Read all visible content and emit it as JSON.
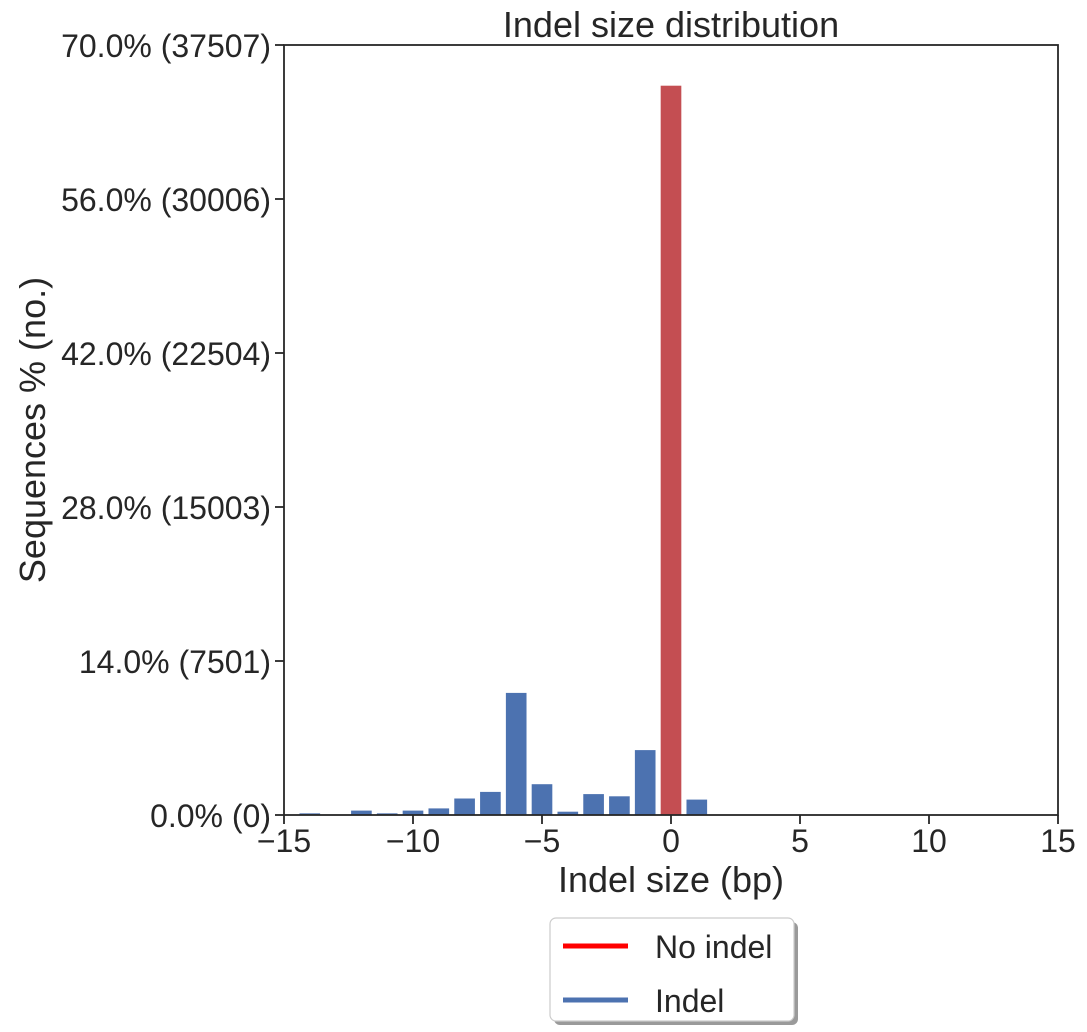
{
  "chart_data": {
    "type": "bar",
    "title": "Indel size distribution",
    "xlabel": "Indel size (bp)",
    "ylabel": "Sequences % (no.)",
    "xlim": [
      -15,
      15
    ],
    "ylim": [
      0,
      70
    ],
    "x_ticks": [
      {
        "value": -15,
        "label": "−15"
      },
      {
        "value": -10,
        "label": "−10"
      },
      {
        "value": -5,
        "label": "−5"
      },
      {
        "value": 0,
        "label": "0"
      },
      {
        "value": 5,
        "label": "5"
      },
      {
        "value": 10,
        "label": "10"
      },
      {
        "value": 15,
        "label": "15"
      }
    ],
    "y_ticks": [
      {
        "value": 0,
        "label": "0.0% (0)"
      },
      {
        "value": 14,
        "label": "14.0% (7501)"
      },
      {
        "value": 28,
        "label": "28.0% (15003)"
      },
      {
        "value": 42,
        "label": "42.0% (22504)"
      },
      {
        "value": 56,
        "label": "56.0% (30006)"
      },
      {
        "value": 70,
        "label": "70.0% (37507)"
      }
    ],
    "grid": false,
    "legend_position": "bottom-center",
    "series": [
      {
        "name": "Indel",
        "color": "#4c72b0",
        "points": [
          {
            "x": -14,
            "y": 0.15
          },
          {
            "x": -12,
            "y": 0.4
          },
          {
            "x": -11,
            "y": 0.15
          },
          {
            "x": -10,
            "y": 0.4
          },
          {
            "x": -9,
            "y": 0.6
          },
          {
            "x": -8,
            "y": 1.5
          },
          {
            "x": -7,
            "y": 2.1
          },
          {
            "x": -6,
            "y": 11.1
          },
          {
            "x": -5,
            "y": 2.8
          },
          {
            "x": -4,
            "y": 0.3
          },
          {
            "x": -3,
            "y": 1.9
          },
          {
            "x": -2,
            "y": 1.7
          },
          {
            "x": -1,
            "y": 5.9
          },
          {
            "x": 1,
            "y": 1.4
          }
        ]
      },
      {
        "name": "No indel",
        "color": "#c44e52",
        "points": [
          {
            "x": 0,
            "y": 66.3
          }
        ]
      }
    ],
    "legend": [
      {
        "label": "No indel",
        "color": "#ff0000"
      },
      {
        "label": "Indel",
        "color": "#4c72b0"
      }
    ]
  }
}
